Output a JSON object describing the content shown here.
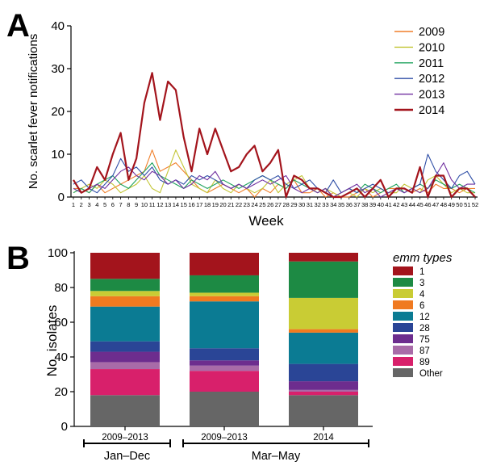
{
  "panels": {
    "a_letter": "A",
    "b_letter": "B"
  },
  "chart_data": [
    {
      "type": "line",
      "xlabel": "Week",
      "ylabel": "No. scarlet fever notifications",
      "ylim": [
        0,
        40
      ],
      "yticks": [
        "0",
        "10",
        "20",
        "30",
        "40"
      ],
      "x": [
        1,
        2,
        3,
        4,
        5,
        6,
        7,
        8,
        9,
        10,
        11,
        12,
        13,
        14,
        15,
        16,
        17,
        18,
        19,
        20,
        21,
        22,
        23,
        24,
        25,
        26,
        27,
        28,
        29,
        30,
        31,
        32,
        33,
        34,
        35,
        36,
        37,
        38,
        39,
        40,
        41,
        42,
        43,
        44,
        45,
        46,
        47,
        48,
        49,
        50,
        51,
        52
      ],
      "legend_position": "top-right",
      "series": [
        {
          "name": "2009",
          "color": "#f07f2a",
          "values": [
            2,
            2,
            1,
            3,
            1,
            2,
            3,
            4,
            5,
            6,
            11,
            6,
            7,
            8,
            6,
            4,
            2,
            1,
            2,
            3,
            2,
            1,
            2,
            0,
            2,
            1,
            3,
            2,
            4,
            1,
            1,
            2,
            0,
            1,
            0,
            0,
            1,
            2,
            0,
            1,
            2,
            2,
            2,
            1,
            2,
            1,
            3,
            2,
            2,
            1,
            2,
            2
          ]
        },
        {
          "name": "2010",
          "color": "#c2c534",
          "values": [
            1,
            2,
            3,
            2,
            4,
            3,
            1,
            2,
            3,
            5,
            2,
            1,
            6,
            11,
            7,
            3,
            2,
            1,
            4,
            2,
            1,
            3,
            2,
            1,
            2,
            4,
            1,
            3,
            4,
            5,
            2,
            1,
            2,
            1,
            0,
            1,
            0,
            2,
            1,
            2,
            1,
            1,
            3,
            2,
            1,
            4,
            5,
            3,
            1,
            2,
            1,
            1
          ]
        },
        {
          "name": "2011",
          "color": "#1fa35e",
          "values": [
            1,
            2,
            1,
            3,
            4,
            5,
            3,
            2,
            4,
            6,
            8,
            5,
            4,
            3,
            2,
            4,
            3,
            2,
            3,
            4,
            3,
            2,
            3,
            4,
            5,
            4,
            3,
            2,
            4,
            3,
            2,
            1,
            2,
            0,
            1,
            2,
            1,
            3,
            2,
            1,
            2,
            3,
            1,
            2,
            3,
            2,
            4,
            3,
            2,
            3,
            2,
            1
          ]
        },
        {
          "name": "2012",
          "color": "#2e4ea6",
          "values": [
            3,
            4,
            2,
            1,
            3,
            5,
            9,
            6,
            7,
            5,
            7,
            4,
            3,
            4,
            3,
            5,
            4,
            5,
            4,
            3,
            2,
            3,
            2,
            4,
            5,
            4,
            5,
            3,
            2,
            3,
            4,
            2,
            1,
            4,
            1,
            2,
            1,
            2,
            3,
            2,
            1,
            2,
            1,
            2,
            3,
            10,
            6,
            4,
            2,
            5,
            6,
            3
          ]
        },
        {
          "name": "2013",
          "color": "#7030a0",
          "values": [
            2,
            1,
            2,
            3,
            2,
            4,
            6,
            7,
            5,
            4,
            6,
            5,
            3,
            4,
            2,
            3,
            5,
            4,
            6,
            3,
            2,
            3,
            2,
            3,
            4,
            3,
            4,
            5,
            2,
            1,
            2,
            1,
            2,
            0,
            1,
            2,
            3,
            1,
            2,
            0,
            1,
            2,
            1,
            2,
            1,
            2,
            5,
            8,
            4,
            2,
            3,
            3
          ]
        },
        {
          "name": "2014",
          "color": "#a3141c",
          "values": [
            4,
            1,
            2,
            7,
            4,
            10,
            15,
            4,
            9,
            22,
            29,
            18,
            27,
            25,
            14,
            6,
            16,
            10,
            16,
            11,
            6,
            7,
            10,
            12,
            6,
            8,
            11,
            0,
            5,
            4,
            2,
            2,
            1,
            0,
            0,
            1,
            2,
            0,
            2,
            4,
            0,
            2,
            2,
            1,
            7,
            0,
            5,
            5,
            0,
            2,
            2,
            0
          ]
        }
      ]
    },
    {
      "type": "bar",
      "stacked": true,
      "ylabel": "No. isolates",
      "ylim": [
        0,
        100
      ],
      "yticks": [
        "0",
        "20",
        "40",
        "60",
        "80",
        "100"
      ],
      "categories": [
        "2009–2013",
        "2009–2013",
        "2014"
      ],
      "groups": [
        {
          "label": "Jan–Dec",
          "members": [
            0
          ]
        },
        {
          "label": "Mar–May",
          "members": [
            1,
            2
          ]
        }
      ],
      "legend_title": "emm types",
      "legend_position": "right",
      "series": [
        {
          "name": "Other",
          "color": "#666666",
          "values": [
            18,
            20,
            18
          ]
        },
        {
          "name": "89",
          "color": "#d8206b",
          "values": [
            15,
            12,
            2
          ]
        },
        {
          "name": "87",
          "color": "#a86ba8",
          "values": [
            4,
            3,
            1
          ]
        },
        {
          "name": "75",
          "color": "#6d2d8e",
          "values": [
            6,
            3,
            5
          ]
        },
        {
          "name": "28",
          "color": "#2a4596",
          "values": [
            6,
            7,
            10
          ]
        },
        {
          "name": "12",
          "color": "#0b7b93",
          "values": [
            20,
            27,
            18
          ]
        },
        {
          "name": "6",
          "color": "#f07a20",
          "values": [
            6,
            3,
            2
          ]
        },
        {
          "name": "4",
          "color": "#c9cc34",
          "values": [
            3,
            2,
            18
          ]
        },
        {
          "name": "3",
          "color": "#1d8a44",
          "values": [
            7,
            10,
            21
          ]
        },
        {
          "name": "1",
          "color": "#a3141c",
          "values": [
            15,
            13,
            5
          ]
        }
      ]
    }
  ]
}
